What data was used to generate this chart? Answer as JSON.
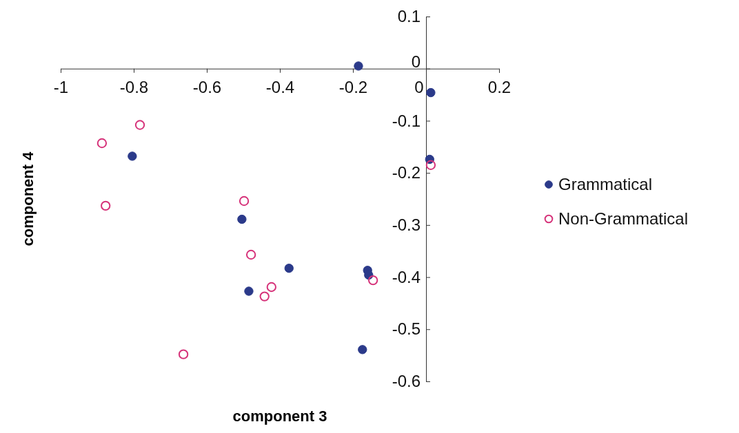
{
  "chart_data": {
    "type": "scatter",
    "xlabel": "component 3",
    "ylabel": "component 4",
    "xlim": [
      -1,
      0.2
    ],
    "ylim": [
      -0.6,
      0.1
    ],
    "xticks": [
      -1,
      -0.8,
      -0.6,
      -0.4,
      -0.2,
      0,
      0.2
    ],
    "yticks": [
      -0.6,
      -0.5,
      -0.4,
      -0.3,
      -0.2,
      -0.1,
      0,
      0.1
    ],
    "legend": "right",
    "marker": "circle",
    "grid": false,
    "series": [
      {
        "name": "Grammatical",
        "color": "#2b3a8a",
        "x": [
          -0.185,
          0.013,
          0.01,
          -0.804,
          -0.504,
          -0.375,
          -0.16,
          -0.157,
          -0.485,
          -0.174
        ],
        "values": [
          0.005,
          -0.046,
          -0.174,
          -0.168,
          -0.289,
          -0.383,
          -0.387,
          -0.396,
          -0.427,
          -0.539
        ]
      },
      {
        "name": "Non-Grammatical",
        "color": "#d6337a",
        "x": [
          -0.783,
          -0.887,
          -0.877,
          0.013,
          -0.498,
          -0.479,
          -0.423,
          -0.442,
          -0.145,
          -0.664
        ],
        "values": [
          -0.108,
          -0.143,
          -0.263,
          -0.185,
          -0.254,
          -0.357,
          -0.419,
          -0.437,
          -0.406,
          -0.548
        ]
      }
    ]
  }
}
